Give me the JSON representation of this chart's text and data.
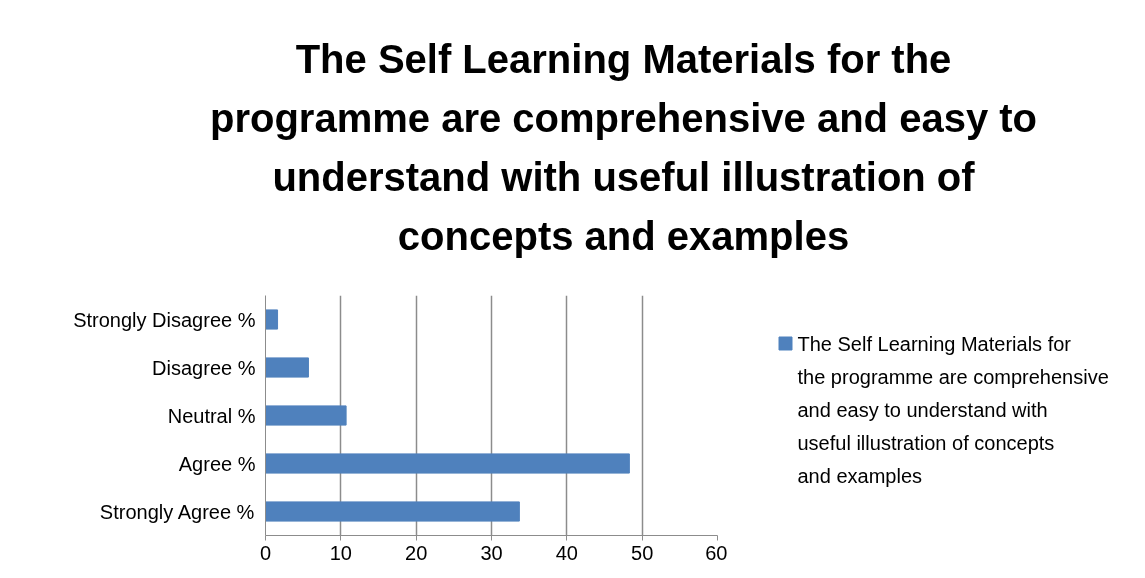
{
  "chart_data": {
    "type": "bar",
    "orientation": "horizontal",
    "title": "The Self Learning Materials for the programme are comprehensive and easy to understand with useful illustration of concepts and examples",
    "categories": [
      "Strongly Disagree %",
      "Disagree %",
      "Neutral %",
      "Agree %",
      "Strongly Agree %"
    ],
    "series": [
      {
        "name": "The Self Learning Materials for the programme are comprehensive and easy to understand with useful illustration of concepts and examples",
        "color": "#4f81bd",
        "values": [
          1.6,
          5.7,
          10.7,
          48.3,
          33.7
        ]
      }
    ],
    "xlim": [
      0,
      60
    ],
    "xticks": [
      0,
      10,
      20,
      30,
      40,
      50,
      60
    ],
    "grid": "x",
    "legend": "right"
  }
}
